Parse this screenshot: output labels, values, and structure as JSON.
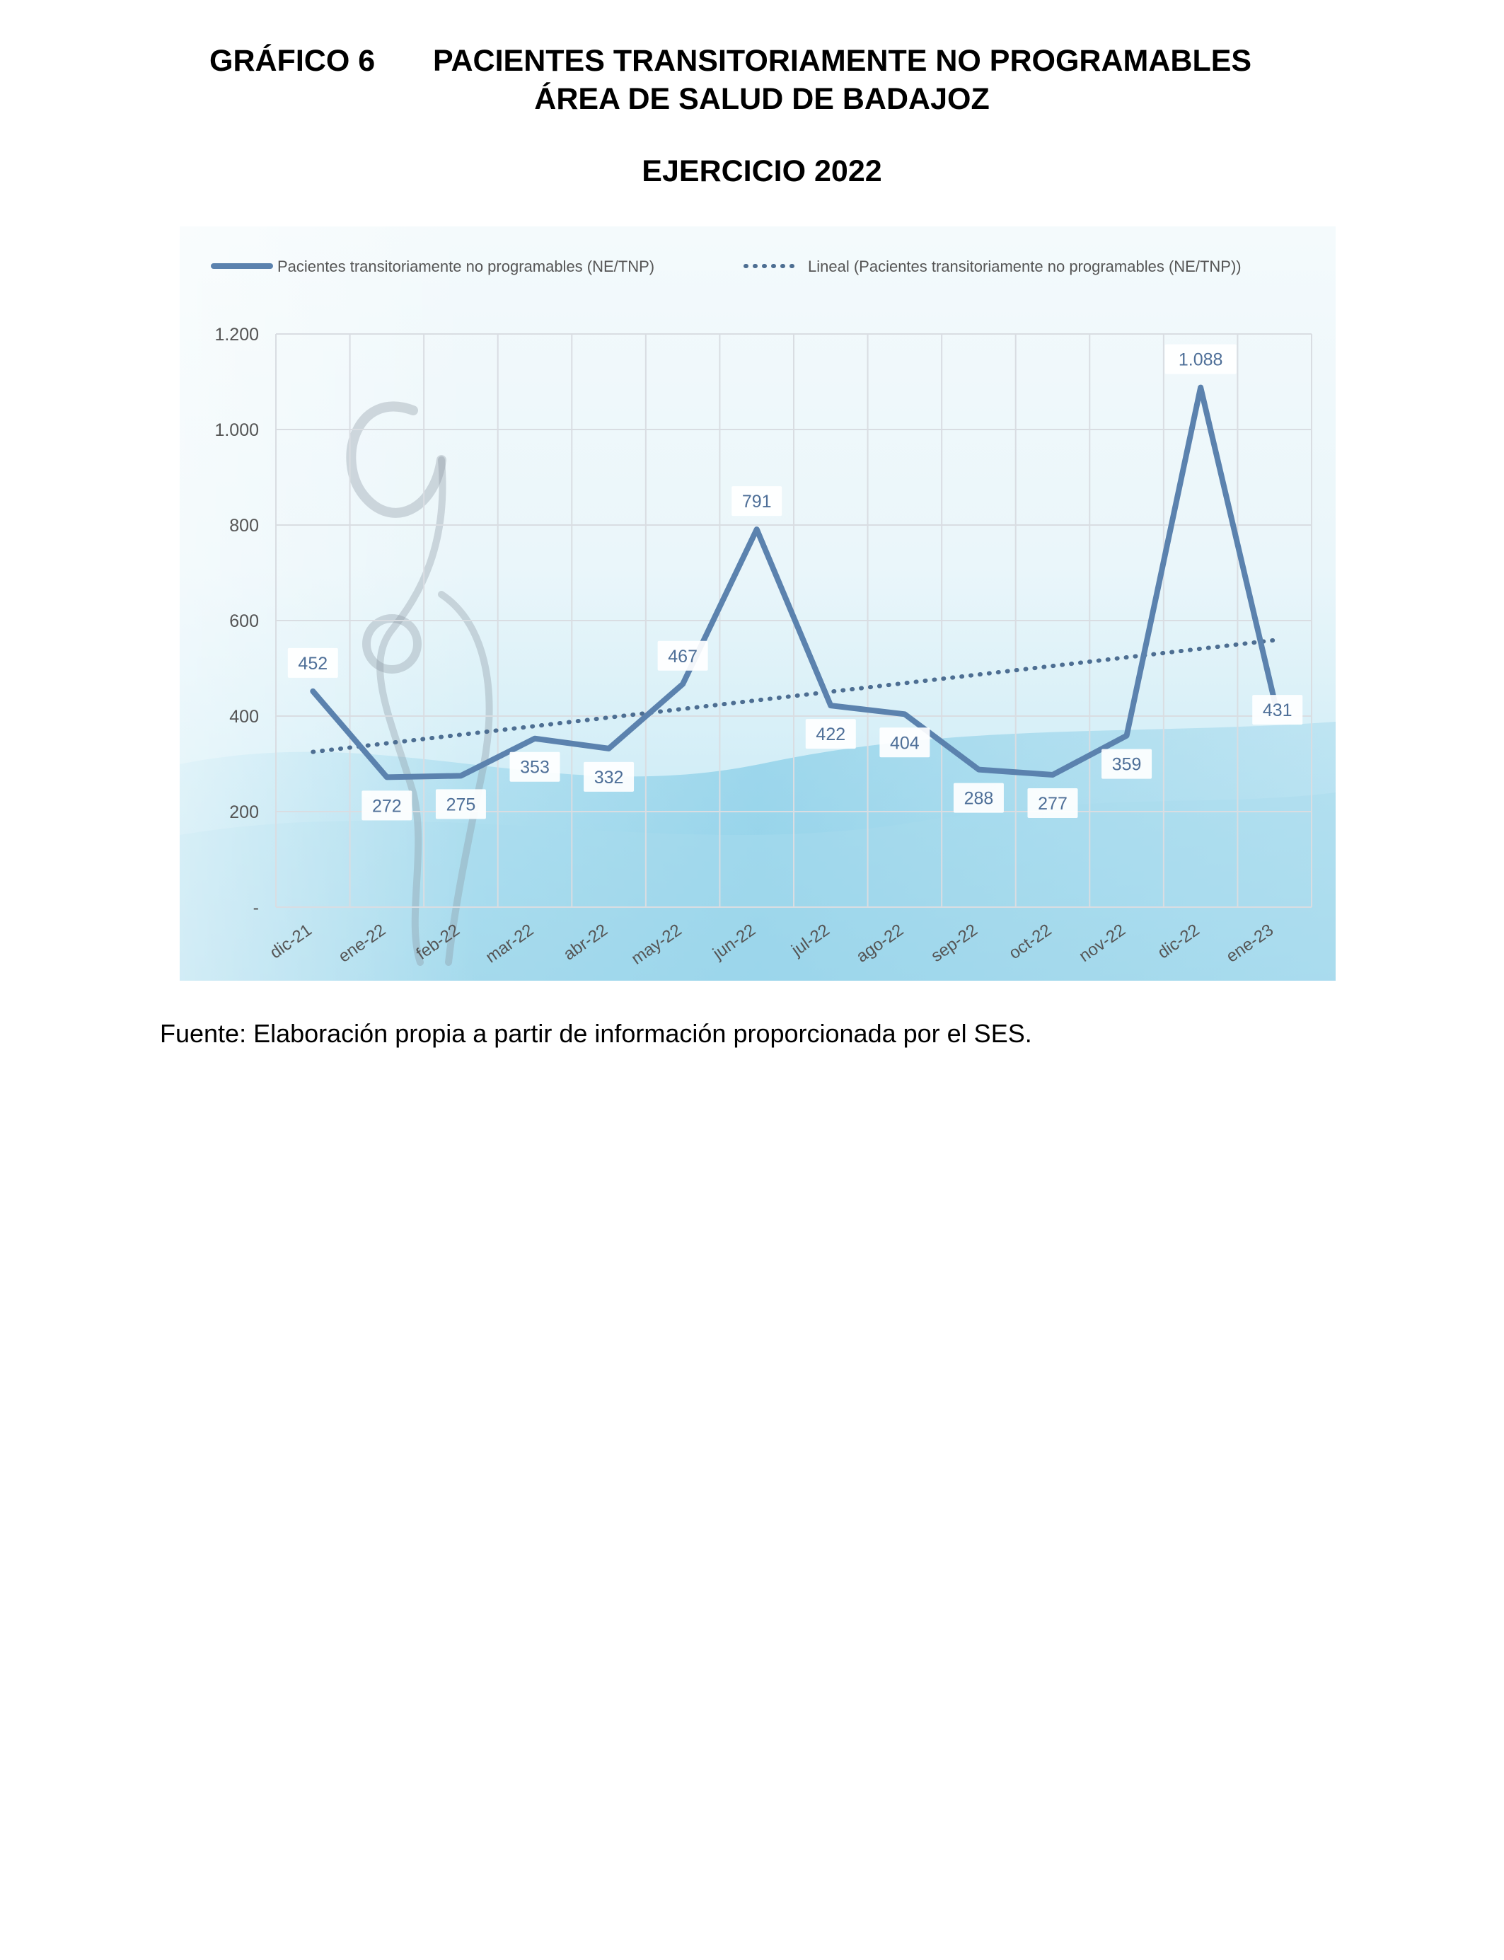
{
  "heading": {
    "figure_label": "GRÁFICO 6",
    "title": "PACIENTES TRANSITORIAMENTE NO PROGRAMABLES",
    "subtitle": "ÁREA DE SALUD DE BADAJOZ",
    "period": "EJERCICIO 2022"
  },
  "source_note": "Fuente: Elaboración propia a partir de información proporcionada por el SES.",
  "colors": {
    "series": "#5b82ae",
    "trend": "#4d6e92",
    "grid": "#d9dde2",
    "axis_text": "#555555",
    "label_text": "#4e6f98",
    "background_light": "#e9f5fa",
    "background_blue": "#9fd6ea"
  },
  "chart_data": {
    "type": "line",
    "categories": [
      "dic-21",
      "ene-22",
      "feb-22",
      "mar-22",
      "abr-22",
      "may-22",
      "jun-22",
      "jul-22",
      "ago-22",
      "sep-22",
      "oct-22",
      "nov-22",
      "dic-22",
      "ene-23"
    ],
    "series": [
      {
        "name": "Pacientes transitoriamente no programables (NE/TNP)",
        "values": [
          452,
          272,
          275,
          353,
          332,
          467,
          791,
          422,
          404,
          288,
          277,
          359,
          1088,
          431
        ],
        "labels": [
          "452",
          "272",
          "275",
          "353",
          "332",
          "467",
          "791",
          "422",
          "404",
          "288",
          "277",
          "359",
          "1.088",
          "431"
        ],
        "label_placement": [
          "above",
          "below",
          "below",
          "below",
          "below",
          "above",
          "above",
          "below",
          "below",
          "below",
          "below",
          "below",
          "above",
          "right"
        ],
        "style": "solid"
      },
      {
        "name": "Lineal (Pacientes transitoriamente no programables (NE/TNP))",
        "type": "linear-trend",
        "values": [
          325,
          343,
          361,
          379,
          397,
          415,
          433,
          451,
          469,
          487,
          505,
          523,
          541,
          559
        ],
        "style": "dotted"
      }
    ],
    "yticks": [
      0,
      200,
      400,
      600,
      800,
      1000,
      1200
    ],
    "ytick_labels": [
      "-",
      "200",
      "400",
      "600",
      "800",
      "1.000",
      "1.200"
    ],
    "ylim": [
      0,
      1200
    ],
    "xlabel": "",
    "ylabel": "",
    "grid": true,
    "legend_position": "top"
  }
}
